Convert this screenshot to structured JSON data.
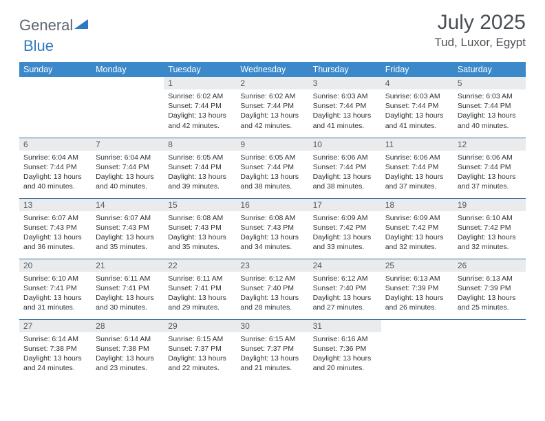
{
  "brand": {
    "text1": "General",
    "text2": "Blue"
  },
  "title": "July 2025",
  "location": "Tud, Luxor, Egypt",
  "day_headers": [
    "Sunday",
    "Monday",
    "Tuesday",
    "Wednesday",
    "Thursday",
    "Friday",
    "Saturday"
  ],
  "colors": {
    "header_bg": "#3b89ca",
    "header_text": "#ffffff",
    "row_rule": "#3b6fa0",
    "daynum_bg": "#e9ebed",
    "text": "#303336",
    "brand_gray": "#5c6670",
    "brand_blue": "#2f78c2"
  },
  "layout": {
    "type": "table",
    "columns": 7,
    "rows": 5,
    "first_weekday_index": 2
  },
  "days": [
    {
      "n": "1",
      "sr": "6:02 AM",
      "ss": "7:44 PM",
      "dl": "13 hours and 42 minutes."
    },
    {
      "n": "2",
      "sr": "6:02 AM",
      "ss": "7:44 PM",
      "dl": "13 hours and 42 minutes."
    },
    {
      "n": "3",
      "sr": "6:03 AM",
      "ss": "7:44 PM",
      "dl": "13 hours and 41 minutes."
    },
    {
      "n": "4",
      "sr": "6:03 AM",
      "ss": "7:44 PM",
      "dl": "13 hours and 41 minutes."
    },
    {
      "n": "5",
      "sr": "6:03 AM",
      "ss": "7:44 PM",
      "dl": "13 hours and 40 minutes."
    },
    {
      "n": "6",
      "sr": "6:04 AM",
      "ss": "7:44 PM",
      "dl": "13 hours and 40 minutes."
    },
    {
      "n": "7",
      "sr": "6:04 AM",
      "ss": "7:44 PM",
      "dl": "13 hours and 40 minutes."
    },
    {
      "n": "8",
      "sr": "6:05 AM",
      "ss": "7:44 PM",
      "dl": "13 hours and 39 minutes."
    },
    {
      "n": "9",
      "sr": "6:05 AM",
      "ss": "7:44 PM",
      "dl": "13 hours and 38 minutes."
    },
    {
      "n": "10",
      "sr": "6:06 AM",
      "ss": "7:44 PM",
      "dl": "13 hours and 38 minutes."
    },
    {
      "n": "11",
      "sr": "6:06 AM",
      "ss": "7:44 PM",
      "dl": "13 hours and 37 minutes."
    },
    {
      "n": "12",
      "sr": "6:06 AM",
      "ss": "7:44 PM",
      "dl": "13 hours and 37 minutes."
    },
    {
      "n": "13",
      "sr": "6:07 AM",
      "ss": "7:43 PM",
      "dl": "13 hours and 36 minutes."
    },
    {
      "n": "14",
      "sr": "6:07 AM",
      "ss": "7:43 PM",
      "dl": "13 hours and 35 minutes."
    },
    {
      "n": "15",
      "sr": "6:08 AM",
      "ss": "7:43 PM",
      "dl": "13 hours and 35 minutes."
    },
    {
      "n": "16",
      "sr": "6:08 AM",
      "ss": "7:43 PM",
      "dl": "13 hours and 34 minutes."
    },
    {
      "n": "17",
      "sr": "6:09 AM",
      "ss": "7:42 PM",
      "dl": "13 hours and 33 minutes."
    },
    {
      "n": "18",
      "sr": "6:09 AM",
      "ss": "7:42 PM",
      "dl": "13 hours and 32 minutes."
    },
    {
      "n": "19",
      "sr": "6:10 AM",
      "ss": "7:42 PM",
      "dl": "13 hours and 32 minutes."
    },
    {
      "n": "20",
      "sr": "6:10 AM",
      "ss": "7:41 PM",
      "dl": "13 hours and 31 minutes."
    },
    {
      "n": "21",
      "sr": "6:11 AM",
      "ss": "7:41 PM",
      "dl": "13 hours and 30 minutes."
    },
    {
      "n": "22",
      "sr": "6:11 AM",
      "ss": "7:41 PM",
      "dl": "13 hours and 29 minutes."
    },
    {
      "n": "23",
      "sr": "6:12 AM",
      "ss": "7:40 PM",
      "dl": "13 hours and 28 minutes."
    },
    {
      "n": "24",
      "sr": "6:12 AM",
      "ss": "7:40 PM",
      "dl": "13 hours and 27 minutes."
    },
    {
      "n": "25",
      "sr": "6:13 AM",
      "ss": "7:39 PM",
      "dl": "13 hours and 26 minutes."
    },
    {
      "n": "26",
      "sr": "6:13 AM",
      "ss": "7:39 PM",
      "dl": "13 hours and 25 minutes."
    },
    {
      "n": "27",
      "sr": "6:14 AM",
      "ss": "7:38 PM",
      "dl": "13 hours and 24 minutes."
    },
    {
      "n": "28",
      "sr": "6:14 AM",
      "ss": "7:38 PM",
      "dl": "13 hours and 23 minutes."
    },
    {
      "n": "29",
      "sr": "6:15 AM",
      "ss": "7:37 PM",
      "dl": "13 hours and 22 minutes."
    },
    {
      "n": "30",
      "sr": "6:15 AM",
      "ss": "7:37 PM",
      "dl": "13 hours and 21 minutes."
    },
    {
      "n": "31",
      "sr": "6:16 AM",
      "ss": "7:36 PM",
      "dl": "13 hours and 20 minutes."
    }
  ],
  "labels": {
    "sunrise": "Sunrise:",
    "sunset": "Sunset:",
    "daylight": "Daylight:"
  }
}
